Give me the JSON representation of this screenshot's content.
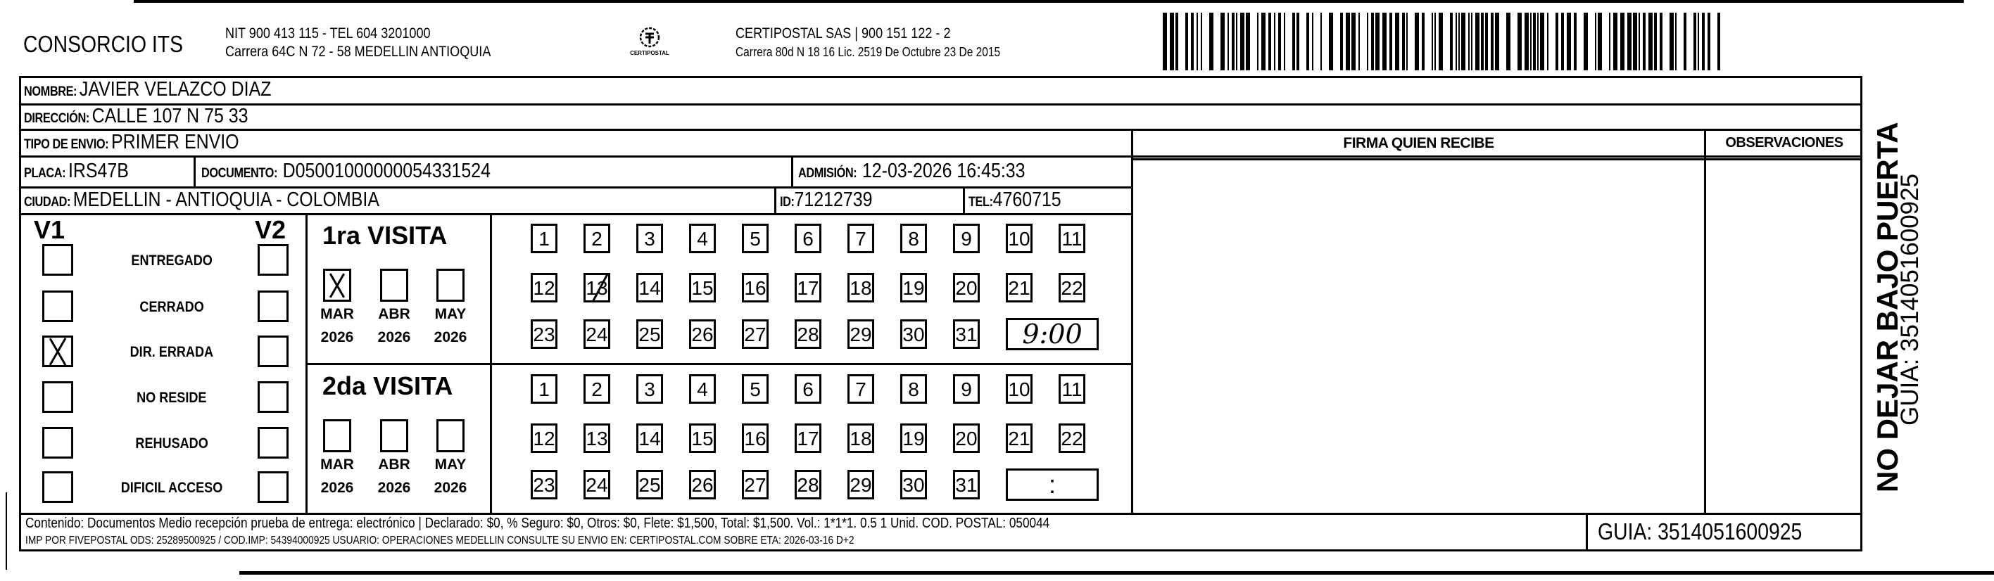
{
  "header": {
    "company": "CONSORCIO ITS",
    "company_info": "NIT 900 413 115 - TEL 604 3201000",
    "company_address": "Carrera 64C N 72 - 58 MEDELLIN ANTIOQUIA",
    "logo_text": "CERTIPOSTAL",
    "carrier_info": "CERTIPOSTAL SAS | 900 151 122 - 2",
    "carrier_address": "Carrera 80d N 18 16  Lic. 2519 De Octubre 23 De 2015"
  },
  "recipient": {
    "nombre_label": "NOMBRE:",
    "nombre": "JAVIER VELAZCO DIAZ",
    "direccion_label": "DIRECCIÓN:",
    "direccion": "CALLE 107 N 75 33",
    "tipo_label": "TIPO DE ENVIO:",
    "tipo": "PRIMER ENVIO",
    "placa_label": "PLACA:",
    "placa": "IRS47B",
    "documento_label": "DOCUMENTO:",
    "documento": "D05001000000054331524",
    "admision_label": "ADMISIÓN:",
    "admision": "12-03-2026 16:45:33",
    "ciudad_label": "CIUDAD:",
    "ciudad": "MEDELLIN - ANTIOQUIA - COLOMBIA",
    "id_label": "ID:",
    "id": "71212739",
    "tel_label": "TEL:",
    "tel": "4760715"
  },
  "firma_label": "FIRMA QUIEN RECIBE",
  "observaciones_label": "OBSERVACIONES",
  "status": {
    "v1_label": "V1",
    "v2_label": "V2",
    "options": [
      {
        "label": "ENTREGADO",
        "v1": false,
        "v2": false
      },
      {
        "label": "CERRADO",
        "v1": false,
        "v2": false
      },
      {
        "label": "DIR. ERRADA",
        "v1": true,
        "v2": false
      },
      {
        "label": "NO RESIDE",
        "v1": false,
        "v2": false
      },
      {
        "label": "REHUSADO",
        "v1": false,
        "v2": false
      },
      {
        "label": "DIFICIL ACCESO",
        "v1": false,
        "v2": false
      }
    ]
  },
  "visits": [
    {
      "title": "1ra VISITA",
      "months": [
        {
          "name": "MAR",
          "year": "2026",
          "checked": true
        },
        {
          "name": "ABR",
          "year": "2026",
          "checked": false
        },
        {
          "name": "MAY",
          "year": "2026",
          "checked": false
        }
      ],
      "crossed_days": [
        13
      ],
      "time": "9:00"
    },
    {
      "title": "2da VISITA",
      "months": [
        {
          "name": "MAR",
          "year": "2026",
          "checked": false
        },
        {
          "name": "ABR",
          "year": "2026",
          "checked": false
        },
        {
          "name": "MAY",
          "year": "2026",
          "checked": false
        }
      ],
      "crossed_days": [],
      "time": ":"
    }
  ],
  "footer": {
    "line1": "Contenido: Documentos Medio recepción prueba de entrega: electrónico | Declarado: $0, % Seguro: $0, Otros: $0, Flete: $1,500, Total: $1,500. Vol.: 1*1*1. 0.5  1 Unid. COD. POSTAL: 050044",
    "line2": "IMP POR FIVEPOSTAL ODS: 25289500925 / COD.IMP: 54394000925 USUARIO: OPERACIONES MEDELLIN CONSULTE SU ENVIO EN: CERTIPOSTAL.COM SOBRE ETA: 2026-03-16 D+2",
    "guia": "GUIA: 3514051600925"
  },
  "side": {
    "warning": "NO DEJAR BAJO PUERTA",
    "guia": "GUIA: 3514051600925"
  }
}
